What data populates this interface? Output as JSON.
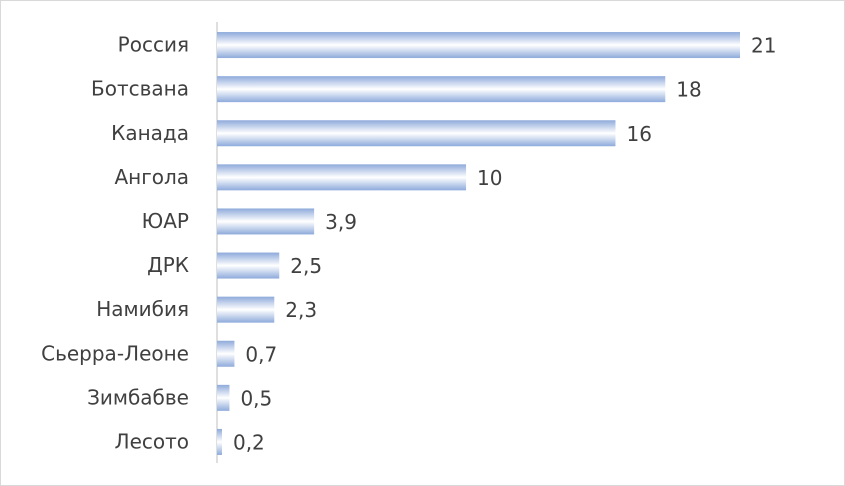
{
  "chart_data": {
    "type": "bar",
    "orientation": "horizontal",
    "categories": [
      "Россия",
      "Ботсвана",
      "Канада",
      "Ангола",
      "ЮАР",
      "ДРК",
      "Намибия",
      "Сьерра-Леоне",
      "Зимбабве",
      "Лесото"
    ],
    "values": [
      21,
      18,
      16,
      10,
      3.9,
      2.5,
      2.3,
      0.7,
      0.5,
      0.2
    ],
    "value_labels": [
      "21",
      "18",
      "16",
      "10",
      "3,9",
      "2,5",
      "2,3",
      "0,7",
      "0,5",
      "0,2"
    ],
    "color": "#8eaadb"
  }
}
